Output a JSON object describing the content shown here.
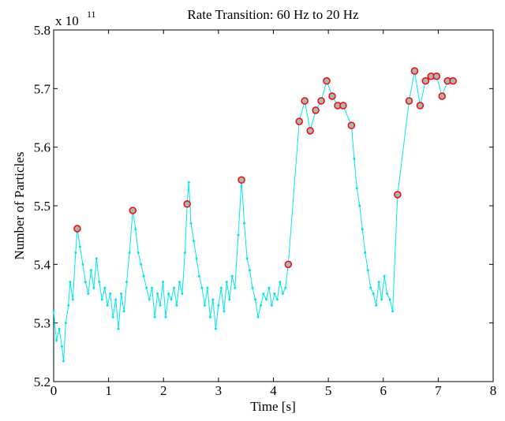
{
  "chart_data": {
    "type": "line",
    "title": "Rate Transition: 60 Hz to 20 Hz",
    "xlabel": "Time [s]",
    "ylabel": "Number of Particles",
    "y_multiplier": {
      "base": "x 10",
      "exponent": "11"
    },
    "xlim": [
      0,
      8
    ],
    "xticks": [
      0,
      1,
      2,
      3,
      4,
      5,
      6,
      7,
      8
    ],
    "ylim": [
      5.2,
      5.8
    ],
    "yticks": [
      5.2,
      5.3,
      5.4,
      5.5,
      5.6,
      5.7,
      5.8
    ],
    "series": [
      {
        "color": "#00e5ee",
        "line": true,
        "x": [
          0,
          0.05,
          0.1,
          0.15,
          0.18,
          0.22,
          0.27,
          0.3,
          0.35,
          0.4,
          0.43,
          0.48,
          0.53,
          0.58,
          0.63,
          0.68,
          0.73,
          0.78,
          0.83,
          0.88,
          0.93,
          0.98,
          1.03,
          1.08,
          1.13,
          1.18,
          1.23,
          1.28,
          1.33,
          1.38,
          1.44,
          1.49,
          1.54,
          1.59,
          1.64,
          1.69,
          1.74,
          1.79,
          1.84,
          1.89,
          1.94,
          1.99,
          2.04,
          2.09,
          2.14,
          2.19,
          2.24,
          2.29,
          2.34,
          2.39,
          2.43,
          2.46,
          2.5,
          2.55,
          2.6,
          2.65,
          2.7,
          2.75,
          2.8,
          2.85,
          2.9,
          2.95,
          3.0,
          3.05,
          3.1,
          3.15,
          3.2,
          3.25,
          3.3,
          3.36,
          3.42,
          3.47,
          3.52,
          3.57,
          3.62,
          3.67,
          3.72,
          3.77,
          3.82,
          3.87,
          3.92,
          3.97,
          4.02,
          4.07,
          4.12,
          4.17,
          4.22,
          4.27,
          4.47,
          4.57,
          4.67,
          4.77,
          4.87,
          4.97,
          5.07,
          5.17,
          5.27,
          5.42,
          5.47,
          5.52,
          5.57,
          5.62,
          5.67,
          5.72,
          5.77,
          5.82,
          5.87,
          5.92,
          5.97,
          6.02,
          6.07,
          6.12,
          6.17,
          6.26,
          6.47,
          6.57,
          6.67,
          6.77,
          6.87,
          6.97,
          7.07,
          7.17,
          7.27
        ],
        "values": [
          5.32,
          5.27,
          5.29,
          5.26,
          5.235,
          5.3,
          5.33,
          5.37,
          5.34,
          5.42,
          5.461,
          5.43,
          5.4,
          5.37,
          5.35,
          5.39,
          5.36,
          5.41,
          5.37,
          5.34,
          5.36,
          5.33,
          5.35,
          5.31,
          5.34,
          5.29,
          5.35,
          5.32,
          5.37,
          5.42,
          5.492,
          5.46,
          5.42,
          5.4,
          5.38,
          5.36,
          5.34,
          5.36,
          5.31,
          5.35,
          5.33,
          5.37,
          5.31,
          5.35,
          5.34,
          5.36,
          5.33,
          5.37,
          5.35,
          5.42,
          5.503,
          5.54,
          5.47,
          5.44,
          5.41,
          5.38,
          5.36,
          5.33,
          5.36,
          5.31,
          5.34,
          5.29,
          5.33,
          5.36,
          5.32,
          5.37,
          5.34,
          5.38,
          5.36,
          5.45,
          5.544,
          5.47,
          5.41,
          5.39,
          5.36,
          5.34,
          5.31,
          5.33,
          5.35,
          5.34,
          5.36,
          5.33,
          5.35,
          5.34,
          5.37,
          5.35,
          5.36,
          5.4,
          5.644,
          5.679,
          5.628,
          5.663,
          5.679,
          5.713,
          5.687,
          5.671,
          5.671,
          5.637,
          5.58,
          5.53,
          5.5,
          5.46,
          5.42,
          5.39,
          5.36,
          5.35,
          5.33,
          5.37,
          5.34,
          5.38,
          5.35,
          5.34,
          5.32,
          5.519,
          5.679,
          5.73,
          5.671,
          5.713,
          5.721,
          5.721,
          5.687,
          5.713,
          5.713
        ]
      },
      {
        "color": "#ff0000",
        "line": false,
        "x": [
          0.43,
          1.44,
          2.43,
          3.42,
          4.27,
          4.47,
          4.57,
          4.67,
          4.77,
          4.87,
          4.97,
          5.07,
          5.17,
          5.27,
          5.42,
          6.26,
          6.47,
          6.57,
          6.67,
          6.77,
          6.87,
          6.97,
          7.07,
          7.17,
          7.27
        ],
        "values": [
          5.461,
          5.492,
          5.503,
          5.544,
          5.4,
          5.644,
          5.679,
          5.628,
          5.663,
          5.679,
          5.713,
          5.687,
          5.671,
          5.671,
          5.637,
          5.519,
          5.679,
          5.73,
          5.671,
          5.713,
          5.721,
          5.721,
          5.687,
          5.713,
          5.713
        ]
      }
    ]
  }
}
